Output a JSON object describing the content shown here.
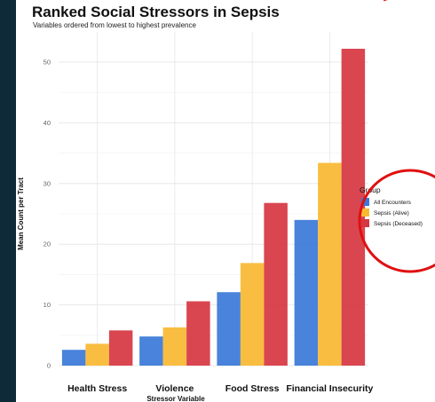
{
  "chart_data": {
    "type": "bar",
    "title": "Ranked Social Stressors in Sepsis",
    "subtitle": "Variables ordered from lowest to highest prevalence",
    "xlabel": "Stressor Variable",
    "ylabel": "Mean Count per Tract",
    "ylim": [
      0,
      53
    ],
    "yticks": [
      0,
      10,
      20,
      30,
      40,
      50
    ],
    "categories": [
      "Health Stress",
      "Violence",
      "Food Stress",
      "Financial Insecurity"
    ],
    "series": [
      {
        "name": "All Encounters",
        "color": "#3a78d8",
        "values": [
          2.6,
          4.8,
          12.1,
          24.0
        ]
      },
      {
        "name": "Sepsis (Alive)",
        "color": "#f8b931",
        "values": [
          3.6,
          6.3,
          16.9,
          33.4
        ]
      },
      {
        "name": "Sepsis (Deceased)",
        "color": "#d63641",
        "values": [
          5.8,
          10.6,
          26.8,
          52.2
        ]
      }
    ],
    "legend": {
      "title": "Group",
      "position": "right"
    },
    "grid": true,
    "annotation": {
      "type": "red-circle",
      "target": "legend",
      "color": "#e01010"
    }
  }
}
